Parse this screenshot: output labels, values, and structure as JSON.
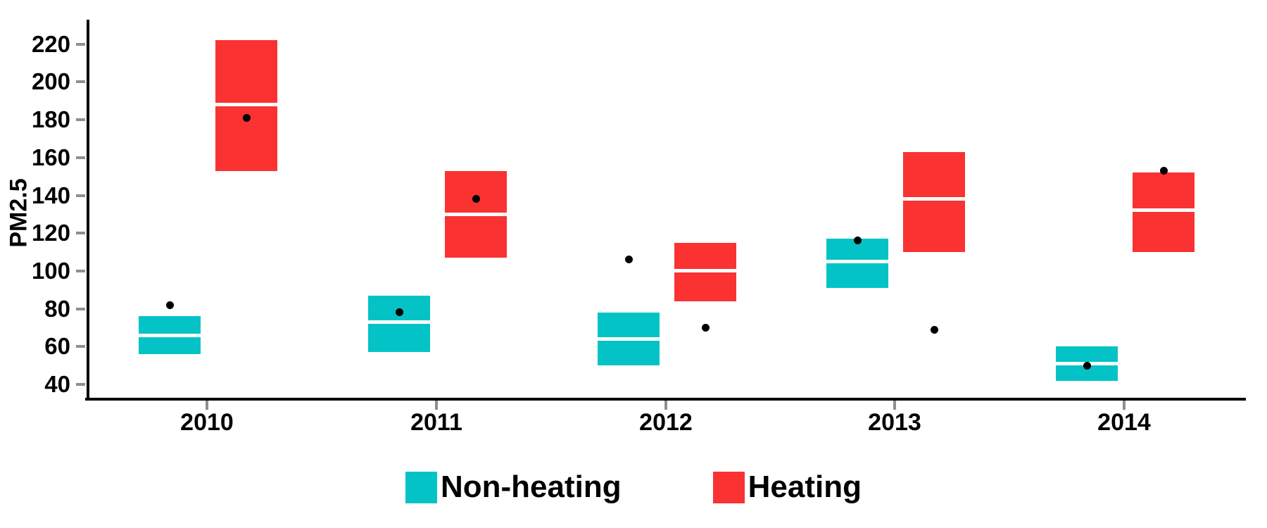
{
  "chart_data": {
    "type": "crossbar-box",
    "title": "",
    "xlabel": "",
    "ylabel": "PM2.5",
    "y_ticks": [
      220,
      200,
      180,
      160,
      140,
      120,
      100,
      80,
      60,
      40
    ],
    "ylim": [
      33,
      228
    ],
    "grid": "off",
    "legend_position": "bottom-center",
    "categories": [
      "2010",
      "2011",
      "2012",
      "2013",
      "2014"
    ],
    "legend": [
      {
        "label": "Non-heating",
        "color": "#04C3C6"
      },
      {
        "label": "Heating",
        "color": "#FA3232"
      }
    ],
    "point_color": "#000000",
    "series": [
      {
        "name": "Non-heating",
        "color": "#04C3C6",
        "boxes": [
          {
            "year": "2010",
            "lower": 56,
            "median": 66,
            "upper": 76,
            "point": 82
          },
          {
            "year": "2011",
            "lower": 57,
            "median": 73,
            "upper": 87,
            "point": 78
          },
          {
            "year": "2012",
            "lower": 50,
            "median": 64,
            "upper": 78,
            "point": 106
          },
          {
            "year": "2013",
            "lower": 91,
            "median": 105,
            "upper": 117,
            "point": 116
          },
          {
            "year": "2014",
            "lower": 42,
            "median": 51,
            "upper": 60,
            "point": 50
          }
        ]
      },
      {
        "name": "Heating",
        "color": "#FA3232",
        "boxes": [
          {
            "year": "2010",
            "lower": 153,
            "median": 188,
            "upper": 222,
            "point": 181
          },
          {
            "year": "2011",
            "lower": 107,
            "median": 130,
            "upper": 153,
            "point": 138
          },
          {
            "year": "2012",
            "lower": 84,
            "median": 100,
            "upper": 115,
            "point": 70
          },
          {
            "year": "2013",
            "lower": 110,
            "median": 138,
            "upper": 163,
            "point": 69
          },
          {
            "year": "2014",
            "lower": 110,
            "median": 132,
            "upper": 152,
            "point": 153
          }
        ]
      }
    ]
  }
}
